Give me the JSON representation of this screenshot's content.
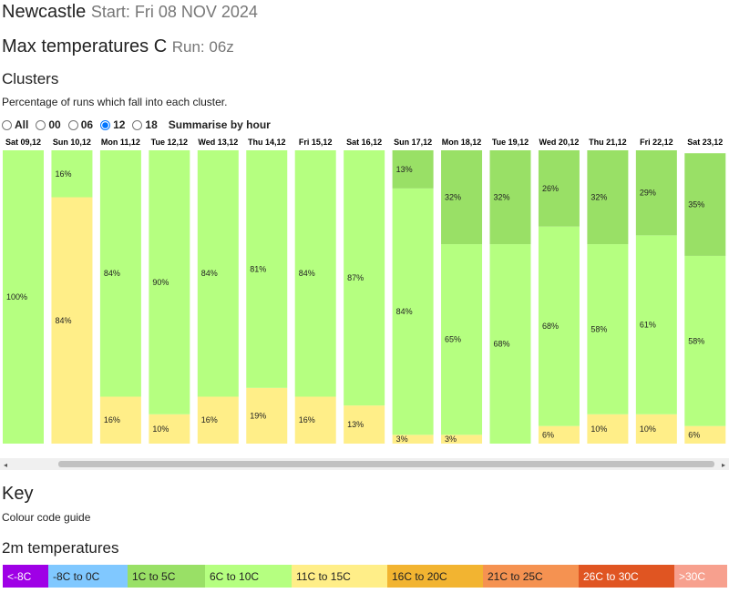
{
  "header": {
    "location": "Newcastle",
    "start": "Start: Fri 08 NOV 2024"
  },
  "subheader": {
    "title": "Max temperatures C",
    "run": "Run: 06z"
  },
  "clusters": {
    "title": "Clusters",
    "description": "Percentage of runs which fall into each cluster.",
    "options": [
      "All",
      "00",
      "06",
      "12",
      "18"
    ],
    "selected": "12",
    "summarise": "Summarise by hour"
  },
  "chart_data": {
    "type": "bar",
    "stacked": true,
    "ylim": [
      0,
      100
    ],
    "categories": [
      "Sat 09,12",
      "Sun 10,12",
      "Mon 11,12",
      "Tue 12,12",
      "Wed 13,12",
      "Thu 14,12",
      "Fri 15,12",
      "Sat 16,12",
      "Sun 17,12",
      "Mon 18,12",
      "Tue 19,12",
      "Wed 20,12",
      "Thu 21,12",
      "Fri 22,12",
      "Sat 23,12"
    ],
    "series": [
      {
        "color": "#ffee88",
        "values": [
          null,
          84,
          16,
          10,
          16,
          19,
          16,
          13,
          3,
          3,
          null,
          6,
          10,
          10,
          6
        ],
        "value_labels": [
          null,
          "84%",
          "16%",
          "10%",
          "16%",
          "19%",
          "16%",
          "13%",
          "3%",
          "3%",
          null,
          "6%",
          "10%",
          "10%",
          "6%"
        ]
      },
      {
        "color": "#b5ff80",
        "values": [
          100,
          16,
          84,
          90,
          84,
          81,
          84,
          87,
          84,
          65,
          68,
          68,
          58,
          61,
          58
        ],
        "value_labels": [
          "100%",
          "16%",
          "84%",
          "90%",
          "84%",
          "81%",
          "84%",
          "87%",
          "84%",
          "65%",
          "68%",
          "68%",
          "58%",
          "61%",
          "58%"
        ]
      },
      {
        "color": "#99e066",
        "values": [
          null,
          null,
          null,
          null,
          null,
          null,
          null,
          null,
          13,
          32,
          32,
          26,
          32,
          29,
          35
        ],
        "value_labels": [
          null,
          null,
          null,
          null,
          null,
          null,
          null,
          null,
          "13%",
          "32%",
          "32%",
          "26%",
          "32%",
          "29%",
          "35%"
        ]
      }
    ]
  },
  "key": {
    "title": "Key",
    "description": "Colour code guide",
    "subtitle": "2m temperatures",
    "items": [
      {
        "label": "<-8C",
        "color": "#9f00e6"
      },
      {
        "label": "-8C to 0C",
        "color": "#80c8ff"
      },
      {
        "label": "1C to 5C",
        "color": "#99e066"
      },
      {
        "label": "6C to 10C",
        "color": "#b5ff80"
      },
      {
        "label": "11C to 15C",
        "color": "#ffee88"
      },
      {
        "label": "16C to 20C",
        "color": "#f2b431"
      },
      {
        "label": "21C to 25C",
        "color": "#f59251"
      },
      {
        "label": "26C to 30C",
        "color": "#e05522"
      },
      {
        "label": ">30C",
        "color": "#f7a08e"
      }
    ]
  }
}
